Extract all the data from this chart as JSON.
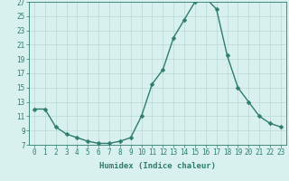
{
  "x": [
    0,
    1,
    2,
    3,
    4,
    5,
    6,
    7,
    8,
    9,
    10,
    11,
    12,
    13,
    14,
    15,
    16,
    17,
    18,
    19,
    20,
    21,
    22,
    23
  ],
  "y": [
    12,
    12,
    9.5,
    8.5,
    8,
    7.5,
    7.2,
    7.2,
    7.5,
    8,
    11,
    15.5,
    17.5,
    22,
    24.5,
    27,
    27.5,
    26,
    19.5,
    15,
    13,
    11,
    10,
    9.5
  ],
  "line_color": "#2e7d6e",
  "marker": "D",
  "markersize": 2.5,
  "linewidth": 1.0,
  "bg_color": "#d8f0ee",
  "grid_color": "#b8d8d4",
  "xlabel": "Humidex (Indice chaleur)",
  "xlim": [
    -0.5,
    23.5
  ],
  "ylim": [
    7,
    27
  ],
  "yticks": [
    7,
    9,
    11,
    13,
    15,
    17,
    19,
    21,
    23,
    25,
    27
  ],
  "xticks": [
    0,
    1,
    2,
    3,
    4,
    5,
    6,
    7,
    8,
    9,
    10,
    11,
    12,
    13,
    14,
    15,
    16,
    17,
    18,
    19,
    20,
    21,
    22,
    23
  ],
  "xtick_labels": [
    "0",
    "1",
    "2",
    "3",
    "4",
    "5",
    "6",
    "7",
    "8",
    "9",
    "10",
    "11",
    "12",
    "13",
    "14",
    "15",
    "16",
    "17",
    "18",
    "19",
    "20",
    "21",
    "22",
    "23"
  ],
  "ytick_labels": [
    "7",
    "9",
    "11",
    "13",
    "15",
    "17",
    "19",
    "21",
    "23",
    "25",
    "27"
  ],
  "tick_color": "#2e7d6e",
  "label_fontsize": 6.5,
  "tick_fontsize": 5.5
}
